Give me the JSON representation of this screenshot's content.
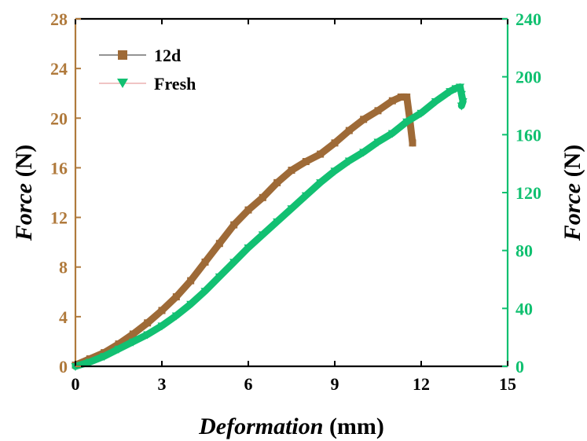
{
  "chart_data": {
    "type": "line",
    "xlabel_italic": "Deformation",
    "xlabel_unit": "(mm)",
    "ylabel_left_italic": "Force",
    "ylabel_left_unit": "(N)",
    "ylabel_right_italic": "Force",
    "ylabel_right_unit": "(N)",
    "xlim": [
      0,
      15
    ],
    "ylim_left": [
      0,
      28
    ],
    "ylim_right": [
      0,
      240
    ],
    "x_ticks": [
      "0",
      "3",
      "6",
      "9",
      "12",
      "15"
    ],
    "y_left_ticks": [
      "0",
      "4",
      "8",
      "12",
      "16",
      "20",
      "24",
      "28"
    ],
    "y_right_ticks": [
      "0",
      "40",
      "80",
      "120",
      "160",
      "200",
      "240"
    ],
    "legend_position": "top-left",
    "colors": {
      "left_axis": "#b07a3c",
      "right_axis": "#10c070"
    },
    "series": [
      {
        "name": "12d",
        "axis": "left",
        "color": "#9e6a37",
        "marker": "square",
        "x": [
          0,
          0.5,
          1.0,
          1.5,
          2.0,
          2.5,
          3.0,
          3.5,
          4.0,
          4.5,
          5.0,
          5.5,
          6.0,
          6.5,
          7.0,
          7.5,
          8.0,
          8.5,
          9.0,
          9.5,
          10.0,
          10.5,
          11.0,
          11.3,
          11.5,
          11.6,
          11.7
        ],
        "y": [
          0.1,
          0.6,
          1.1,
          1.8,
          2.6,
          3.5,
          4.5,
          5.6,
          6.9,
          8.4,
          9.9,
          11.4,
          12.6,
          13.6,
          14.8,
          15.8,
          16.5,
          17.1,
          18.0,
          19.0,
          19.9,
          20.6,
          21.4,
          21.7,
          21.7,
          20.0,
          18.0
        ]
      },
      {
        "name": "Fresh",
        "axis": "right",
        "color": "#12c072",
        "marker": "triangle-down",
        "x": [
          0,
          0.5,
          1.0,
          1.5,
          2.0,
          2.5,
          3.0,
          3.5,
          4.0,
          4.5,
          5.0,
          5.5,
          6.0,
          6.5,
          7.0,
          7.5,
          8.0,
          8.5,
          9.0,
          9.5,
          10.0,
          10.5,
          11.0,
          11.5,
          12.0,
          12.5,
          13.0,
          13.2,
          13.35,
          13.4,
          13.45,
          13.4
        ],
        "y": [
          0,
          3,
          7,
          12,
          17,
          22,
          28,
          35,
          43,
          52,
          62,
          72,
          82,
          91,
          100,
          109,
          118,
          127,
          135,
          142,
          148,
          155,
          161,
          169,
          175,
          183,
          190,
          192,
          193,
          188,
          183,
          180
        ]
      }
    ]
  }
}
